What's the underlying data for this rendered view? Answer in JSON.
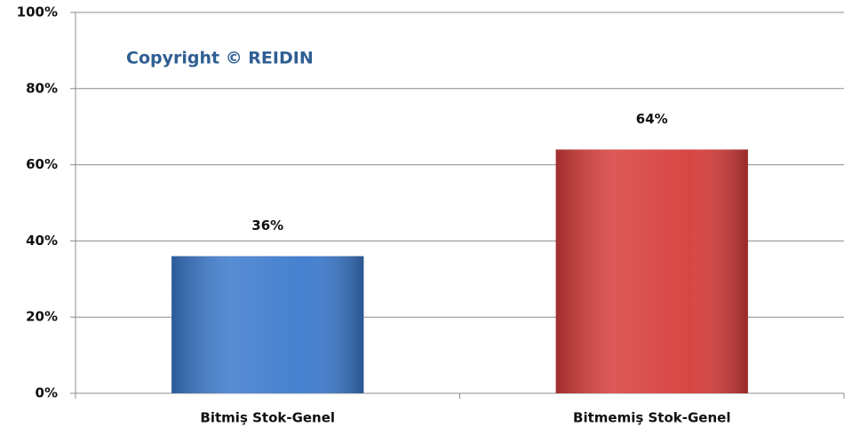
{
  "chart_data": {
    "type": "bar",
    "annotation": "Copyright © REIDIN",
    "categories": [
      "Bitmiş Stok-Genel",
      "Bitmemiş Stok-Genel"
    ],
    "values": [
      36,
      64
    ],
    "value_labels": [
      "36%",
      "64%"
    ],
    "colors": [
      "#3b79cc",
      "#d63c3a"
    ],
    "ylim": [
      0,
      100
    ],
    "yticks": [
      {
        "value": 0,
        "label": "0%"
      },
      {
        "value": 20,
        "label": "20%"
      },
      {
        "value": 40,
        "label": "40%"
      },
      {
        "value": 60,
        "label": "60%"
      },
      {
        "value": 80,
        "label": "80%"
      },
      {
        "value": 100,
        "label": "100%"
      }
    ],
    "grid": true
  }
}
